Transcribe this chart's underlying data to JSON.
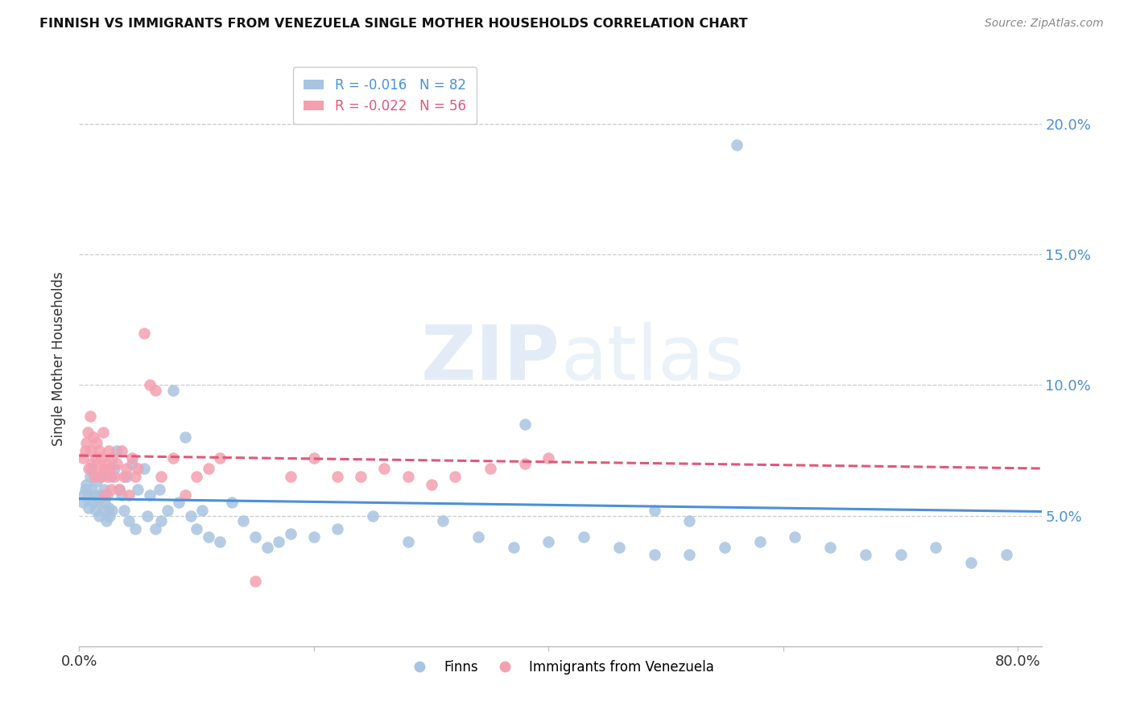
{
  "title": "FINNISH VS IMMIGRANTS FROM VENEZUELA SINGLE MOTHER HOUSEHOLDS CORRELATION CHART",
  "source": "Source: ZipAtlas.com",
  "ylabel": "Single Mother Households",
  "watermark": "ZIPatlas",
  "legend": {
    "finns": {
      "R": "-0.016",
      "N": "82",
      "color": "#a8c4e0"
    },
    "venezuela": {
      "R": "-0.022",
      "N": "56",
      "color": "#f4a0b0"
    }
  },
  "finns_color": "#a8c4e0",
  "finns_line_color": "#4a90d9",
  "venezuela_color": "#f4a0b0",
  "venezuela_line_color": "#e05878",
  "background": "#ffffff",
  "grid_color": "#cccccc",
  "right_axis_color": "#4a90d9",
  "ylim": [
    0.0,
    0.22
  ],
  "xlim": [
    0.0,
    0.82
  ],
  "yticks": [
    0.05,
    0.1,
    0.15,
    0.2
  ],
  "ytick_labels": [
    "5.0%",
    "10.0%",
    "15.0%",
    "20.0%"
  ],
  "xticks": [
    0.0,
    0.2,
    0.4,
    0.6,
    0.8
  ],
  "xtick_labels": [
    "0.0%",
    "",
    "",
    "",
    "80.0%"
  ],
  "finns_x": [
    0.003,
    0.004,
    0.005,
    0.006,
    0.007,
    0.008,
    0.009,
    0.01,
    0.011,
    0.012,
    0.013,
    0.014,
    0.015,
    0.016,
    0.017,
    0.018,
    0.019,
    0.02,
    0.021,
    0.022,
    0.023,
    0.024,
    0.025,
    0.026,
    0.027,
    0.028,
    0.03,
    0.032,
    0.034,
    0.036,
    0.038,
    0.04,
    0.042,
    0.045,
    0.048,
    0.05,
    0.055,
    0.058,
    0.06,
    0.065,
    0.068,
    0.07,
    0.075,
    0.08,
    0.085,
    0.09,
    0.095,
    0.1,
    0.105,
    0.11,
    0.12,
    0.13,
    0.14,
    0.15,
    0.16,
    0.17,
    0.18,
    0.2,
    0.22,
    0.25,
    0.28,
    0.31,
    0.34,
    0.37,
    0.4,
    0.43,
    0.46,
    0.49,
    0.52,
    0.55,
    0.58,
    0.61,
    0.64,
    0.67,
    0.7,
    0.73,
    0.76,
    0.79,
    0.49,
    0.52,
    0.38,
    0.56
  ],
  "finns_y": [
    0.055,
    0.058,
    0.06,
    0.062,
    0.057,
    0.053,
    0.065,
    0.068,
    0.06,
    0.055,
    0.058,
    0.052,
    0.063,
    0.056,
    0.05,
    0.058,
    0.065,
    0.052,
    0.06,
    0.055,
    0.048,
    0.058,
    0.053,
    0.05,
    0.065,
    0.052,
    0.068,
    0.075,
    0.06,
    0.058,
    0.052,
    0.065,
    0.048,
    0.07,
    0.045,
    0.06,
    0.068,
    0.05,
    0.058,
    0.045,
    0.06,
    0.048,
    0.052,
    0.098,
    0.055,
    0.08,
    0.05,
    0.045,
    0.052,
    0.042,
    0.04,
    0.055,
    0.048,
    0.042,
    0.038,
    0.04,
    0.043,
    0.042,
    0.045,
    0.05,
    0.04,
    0.048,
    0.042,
    0.038,
    0.04,
    0.042,
    0.038,
    0.035,
    0.035,
    0.038,
    0.04,
    0.042,
    0.038,
    0.035,
    0.035,
    0.038,
    0.032,
    0.035,
    0.052,
    0.048,
    0.085,
    0.192
  ],
  "venezuela_x": [
    0.003,
    0.005,
    0.006,
    0.007,
    0.008,
    0.009,
    0.01,
    0.011,
    0.012,
    0.013,
    0.014,
    0.015,
    0.016,
    0.017,
    0.018,
    0.019,
    0.02,
    0.021,
    0.022,
    0.023,
    0.024,
    0.025,
    0.026,
    0.027,
    0.028,
    0.03,
    0.032,
    0.034,
    0.036,
    0.038,
    0.04,
    0.042,
    0.045,
    0.048,
    0.05,
    0.055,
    0.06,
    0.065,
    0.07,
    0.08,
    0.09,
    0.1,
    0.11,
    0.12,
    0.15,
    0.18,
    0.2,
    0.22,
    0.24,
    0.26,
    0.28,
    0.3,
    0.32,
    0.35,
    0.38,
    0.4
  ],
  "venezuela_y": [
    0.072,
    0.075,
    0.078,
    0.082,
    0.068,
    0.088,
    0.075,
    0.07,
    0.08,
    0.065,
    0.072,
    0.078,
    0.068,
    0.075,
    0.065,
    0.072,
    0.082,
    0.068,
    0.058,
    0.07,
    0.065,
    0.075,
    0.068,
    0.06,
    0.072,
    0.065,
    0.07,
    0.06,
    0.075,
    0.065,
    0.068,
    0.058,
    0.072,
    0.065,
    0.068,
    0.12,
    0.1,
    0.098,
    0.065,
    0.072,
    0.058,
    0.065,
    0.068,
    0.072,
    0.025,
    0.065,
    0.072,
    0.065,
    0.065,
    0.068,
    0.065,
    0.062,
    0.065,
    0.068,
    0.07,
    0.072
  ]
}
